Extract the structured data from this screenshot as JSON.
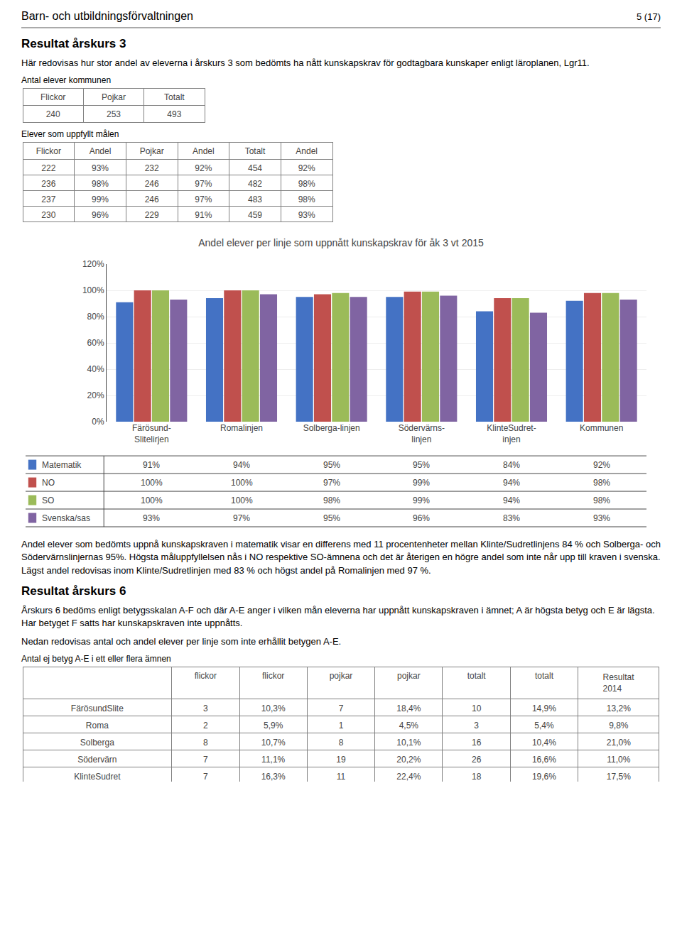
{
  "texts": {
    "page_header": "Barn- och utbildningsförvaltningen",
    "page_number": "5 (17)",
    "section1_title": "Resultat årskurs 3",
    "section1_intro": "Här redovisas hur stor andel av eleverna i årskurs 3 som bedömts ha nått kunskapskrav för godtagbara kunskaper enligt läroplanen, Lgr11.",
    "text_block1": "Andel elever som bedömts uppnå kunskapskraven i matematik visar en differens med 11 procentenheter mellan Klinte/Sudretlinjens 84 % och Solberga- och Södervärnslinjernas 95%. Högsta måluppfyllelsen nås i NO respektive SO-ämnena och det är återigen en högre andel som inte når upp till kraven i svenska. Lägst andel redovisas inom Klinte/Sudretlinjen med 83 % och högst andel på Romalinjen med 97 %.",
    "section2_title": "Resultat årskurs 6",
    "section2_intro1": "Årskurs 6 bedöms enligt betygsskalan A-F och där A-E anger i vilken mån eleverna har uppnått kunskapskraven i ämnet; A är högsta betyg och E är lägsta. Har betyget F satts har kunskapskraven inte uppnåtts.",
    "section2_intro2": "Nedan redovisas antal och andel elever per linje som inte erhållit betygen A-E."
  },
  "chart_data": [
    {
      "type": "table",
      "title": "Antal elever kommunen",
      "header": [
        "Flickor",
        "Pojkar",
        "Totalt"
      ],
      "rows": [
        [
          "240",
          "253",
          "493"
        ]
      ]
    },
    {
      "type": "table",
      "title": "Elever som uppfyllt målen",
      "header": [
        "Flickor",
        "Andel",
        "Pojkar",
        "Andel",
        "Totalt",
        "Andel"
      ],
      "rows": [
        [
          "222",
          "93%",
          "232",
          "92%",
          "454",
          "92%"
        ],
        [
          "236",
          "98%",
          "246",
          "97%",
          "482",
          "98%"
        ],
        [
          "237",
          "99%",
          "246",
          "97%",
          "483",
          "98%"
        ],
        [
          "230",
          "96%",
          "229",
          "91%",
          "459",
          "93%"
        ]
      ]
    },
    {
      "type": "bar",
      "title": "Andel elever per linje som uppnått kunskapskrav för åk 3 vt 2015",
      "categories": [
        "Färösund-\nSlitelirjen",
        "Romalinjen",
        "Solberga-linjen",
        "Södervärns-\nlinjen",
        "KlinteSudret-\ninjen",
        "Kommunen"
      ],
      "series": [
        {
          "name": "Matematik",
          "color": "#4472c4",
          "values": [
            91,
            94,
            95,
            95,
            84,
            92
          ],
          "value_labels": [
            "91%",
            "94%",
            "95%",
            "95%",
            "84%",
            "92%"
          ]
        },
        {
          "name": "NO",
          "color": "#c0504d",
          "values": [
            100,
            100,
            97,
            99,
            94,
            98
          ],
          "value_labels": [
            "100%",
            "100%",
            "97%",
            "99%",
            "94%",
            "98%"
          ]
        },
        {
          "name": "SO",
          "color": "#9bbb59",
          "values": [
            100,
            100,
            98,
            99,
            94,
            98
          ],
          "value_labels": [
            "100%",
            "100%",
            "98%",
            "99%",
            "94%",
            "98%"
          ]
        },
        {
          "name": "Svenska/sas",
          "color": "#8064a2",
          "values": [
            93,
            97,
            95,
            96,
            83,
            93
          ],
          "value_labels": [
            "93%",
            "97%",
            "95%",
            "96%",
            "83%",
            "93%"
          ]
        }
      ],
      "ylim": [
        0,
        120
      ],
      "yticks": [
        {
          "value": 0,
          "label": "0%"
        },
        {
          "value": 20,
          "label": "20%"
        },
        {
          "value": 40,
          "label": "40%"
        },
        {
          "value": 60,
          "label": "60%"
        },
        {
          "value": 80,
          "label": "80%"
        },
        {
          "value": 100,
          "label": "100%"
        },
        {
          "value": 120,
          "label": "120%"
        }
      ],
      "grid": true
    },
    {
      "type": "table",
      "title": "Antal ej betyg A-E i ett eller flera ämnen",
      "header": [
        "flickor",
        "flickor",
        "pojkar",
        "pojkar",
        "totalt",
        "totalt",
        "Resultat\n2014"
      ],
      "row_labels": [
        "FärösundSlite",
        "Roma",
        "Solberga",
        "Södervärn",
        "KlinteSudret"
      ],
      "rows": [
        [
          "3",
          "10,3%",
          "7",
          "18,4%",
          "10",
          "14,9%",
          "13,2%"
        ],
        [
          "2",
          "5,9%",
          "1",
          "4,5%",
          "3",
          "5,4%",
          "9,8%"
        ],
        [
          "8",
          "10,7%",
          "8",
          "10,1%",
          "16",
          "10,4%",
          "21,0%"
        ],
        [
          "7",
          "11,1%",
          "19",
          "20,2%",
          "26",
          "16,6%",
          "11,0%"
        ],
        [
          "7",
          "16,3%",
          "11",
          "22,4%",
          "18",
          "19,6%",
          "17,5%"
        ]
      ]
    }
  ]
}
